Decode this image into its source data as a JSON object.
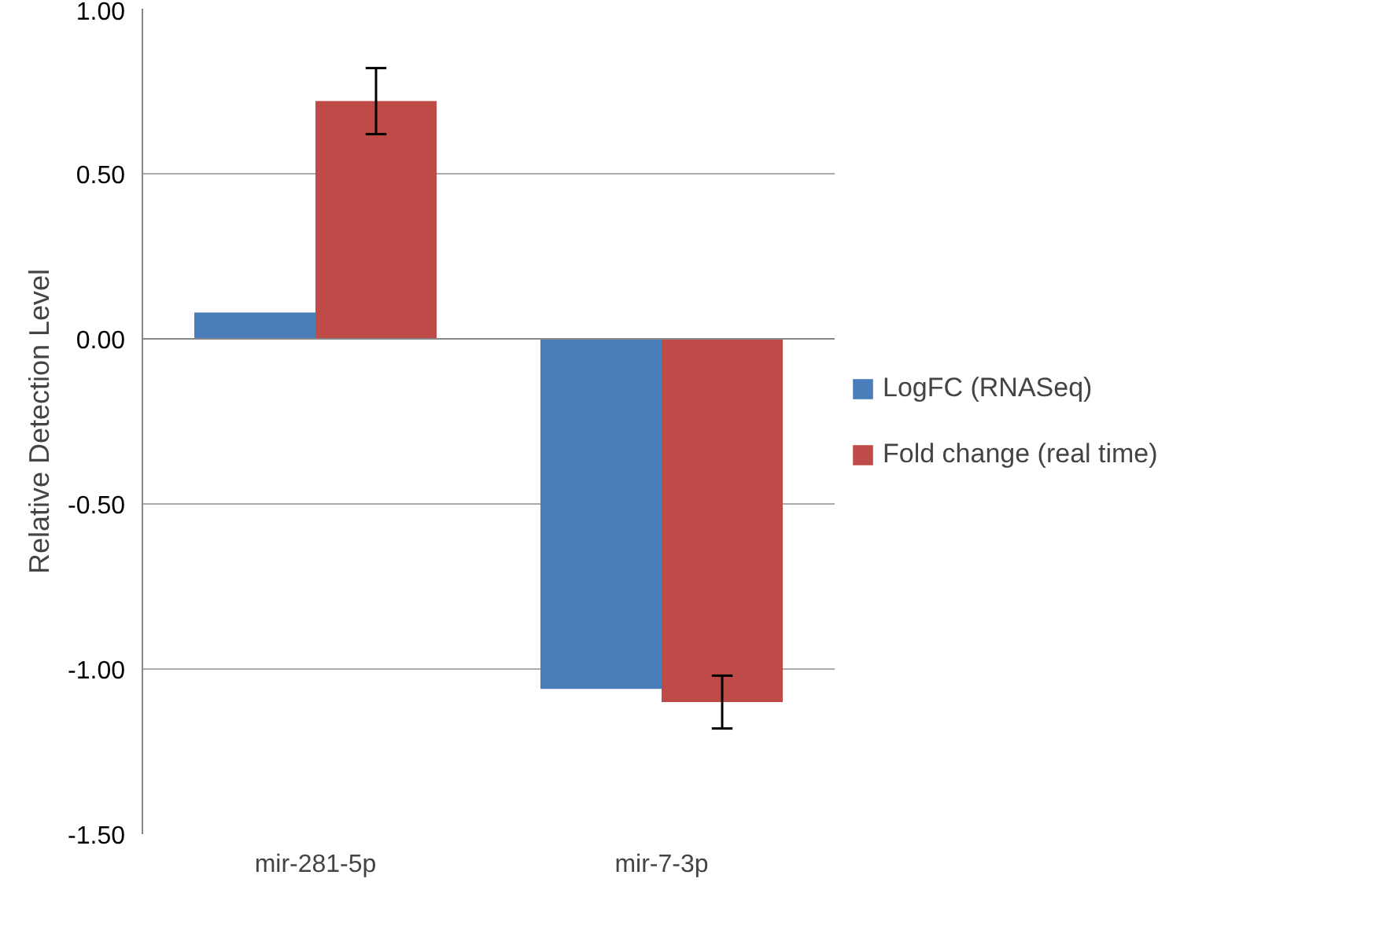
{
  "chart_data": {
    "type": "bar",
    "ylabel": "Relative Detection Level",
    "categories": [
      "mir-281-5p",
      "mir-7-3p"
    ],
    "series": [
      {
        "name": "LogFC (RNASeq)",
        "color": "#4a7ebb",
        "values": [
          0.08,
          -1.06
        ]
      },
      {
        "name": "Fold change (real time)",
        "color": "#be4b48",
        "values": [
          0.72,
          -1.1
        ],
        "errors": [
          0.1,
          0.08
        ]
      }
    ],
    "ylim": [
      -1.5,
      1.0
    ],
    "yticks": [
      {
        "value": -1.5,
        "label": "-1.50"
      },
      {
        "value": -1.0,
        "label": "-1.00"
      },
      {
        "value": -0.5,
        "label": "-0.50"
      },
      {
        "value": 0,
        "label": "0.00"
      },
      {
        "value": 0.5,
        "label": "0.50"
      },
      {
        "value": 1.0,
        "label": "1.00"
      }
    ],
    "grid": "y",
    "legend": "right"
  }
}
